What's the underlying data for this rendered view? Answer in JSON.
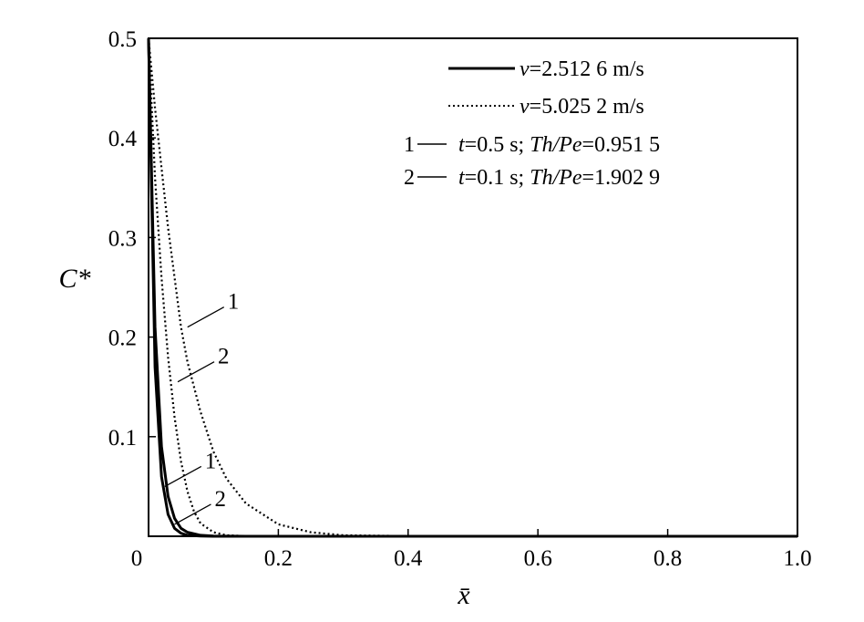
{
  "chart_data": {
    "type": "line",
    "xlabel": "x̄",
    "ylabel": "C*",
    "xlim": [
      0,
      1.0
    ],
    "ylim": [
      0,
      0.5
    ],
    "x_ticks": [
      "0",
      "0.2",
      "0.4",
      "0.6",
      "0.8",
      "1.0"
    ],
    "y_ticks": [
      "0",
      "0.1",
      "0.2",
      "0.3",
      "0.4",
      "0.5"
    ],
    "legend": {
      "placement": "top-right",
      "styles": [
        {
          "symbol": "v",
          "text": "=2.512 6 m/s",
          "line": "solid"
        },
        {
          "symbol": "v",
          "text": "=5.025 2 m/s",
          "line": "dotted"
        }
      ],
      "cases": [
        {
          "num": "1",
          "t": "t",
          "t_text": "=0.5 s; ",
          "ratio": "Th/Pe",
          "ratio_text": "=0.951 5"
        },
        {
          "num": "2",
          "t": "t",
          "t_text": "=0.1 s; ",
          "ratio": "Th/Pe",
          "ratio_text": "=1.902 9"
        }
      ]
    },
    "series": [
      {
        "case": "1",
        "velocity": "2.512 6 m/s",
        "line": "solid",
        "x": [
          0,
          0.01,
          0.02,
          0.03,
          0.04,
          0.05,
          0.06,
          0.08,
          0.1,
          0.15,
          0.2,
          0.4,
          0.6,
          0.8,
          1.0
        ],
        "y": [
          0.5,
          0.21,
          0.09,
          0.04,
          0.018,
          0.008,
          0.004,
          0.001,
          0.0003,
          0,
          0,
          0,
          0,
          0,
          0
        ]
      },
      {
        "case": "2",
        "velocity": "2.512 6 m/s",
        "line": "solid",
        "x": [
          0,
          0.01,
          0.02,
          0.03,
          0.04,
          0.05,
          0.06,
          0.08,
          0.1,
          0.15,
          0.2,
          0.4,
          0.6,
          0.8,
          1.0
        ],
        "y": [
          0.5,
          0.17,
          0.06,
          0.022,
          0.008,
          0.003,
          0.001,
          0.0002,
          0,
          0,
          0,
          0,
          0,
          0,
          0
        ]
      },
      {
        "case": "1",
        "velocity": "5.025 2 m/s",
        "line": "dotted",
        "x": [
          0,
          0.01,
          0.02,
          0.03,
          0.04,
          0.05,
          0.06,
          0.08,
          0.1,
          0.12,
          0.15,
          0.2,
          0.25,
          0.3,
          0.4,
          0.6,
          0.8,
          1.0
        ],
        "y": [
          0.5,
          0.43,
          0.37,
          0.31,
          0.26,
          0.21,
          0.175,
          0.125,
          0.085,
          0.058,
          0.033,
          0.012,
          0.004,
          0.001,
          0.0002,
          0,
          0,
          0
        ]
      },
      {
        "case": "2",
        "velocity": "5.025 2 m/s",
        "line": "dotted",
        "x": [
          0,
          0.01,
          0.02,
          0.03,
          0.04,
          0.05,
          0.06,
          0.07,
          0.08,
          0.1,
          0.12,
          0.15,
          0.2,
          0.4,
          1.0
        ],
        "y": [
          0.5,
          0.36,
          0.26,
          0.18,
          0.12,
          0.075,
          0.045,
          0.025,
          0.013,
          0.004,
          0.001,
          0.0002,
          0,
          0,
          0
        ]
      }
    ],
    "callouts": [
      {
        "label": "1",
        "x": 0.06,
        "y": 0.21
      },
      {
        "label": "2",
        "x": 0.045,
        "y": 0.155
      },
      {
        "label": "1",
        "x": 0.025,
        "y": 0.05
      },
      {
        "label": "2",
        "x": 0.04,
        "y": 0.012
      }
    ]
  }
}
